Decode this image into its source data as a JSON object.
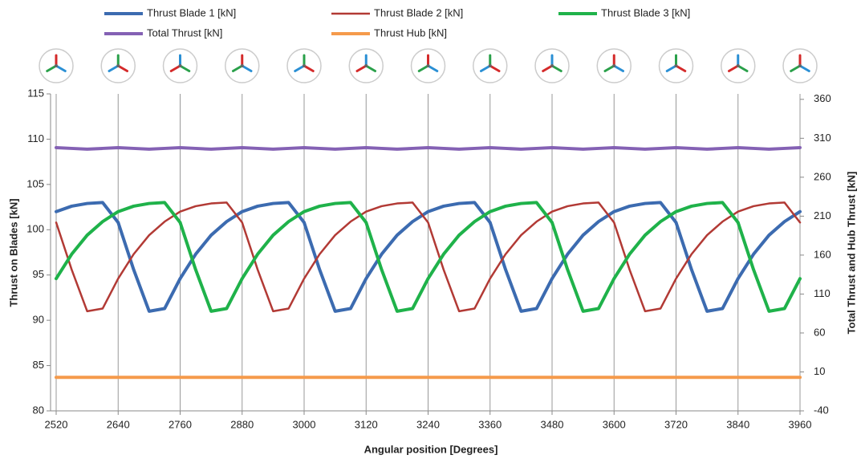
{
  "chart_data": {
    "type": "line",
    "x_label": "Angular position [Degrees]",
    "y_label": "Thrust on Blades [kN]",
    "y2_label": "Total Thrust and Hub Thrust [kN]",
    "x": [
      2520,
      2550,
      2580,
      2610,
      2640,
      2670,
      2700,
      2730,
      2760,
      2790,
      2820,
      2850,
      2880,
      2910,
      2940,
      2970,
      3000,
      3030,
      3060,
      3090,
      3120,
      3150,
      3180,
      3210,
      3240,
      3270,
      3300,
      3330,
      3360,
      3390,
      3420,
      3450,
      3480,
      3510,
      3540,
      3570,
      3600,
      3630,
      3660,
      3690,
      3720,
      3750,
      3780,
      3810,
      3840,
      3870,
      3900,
      3930,
      3960
    ],
    "series": [
      {
        "name": "Thrust Blade 1 [kN]",
        "color": "#3c6bb0",
        "width": 4,
        "values": [
          102.0,
          102.6,
          102.9,
          103.0,
          100.8,
          95.6,
          91.0,
          91.3,
          94.6,
          97.3,
          99.4,
          100.9,
          102.0,
          102.6,
          102.9,
          103.0,
          100.8,
          95.6,
          91.0,
          91.3,
          94.6,
          97.3,
          99.4,
          100.9,
          102.0,
          102.6,
          102.9,
          103.0,
          100.8,
          95.6,
          91.0,
          91.3,
          94.6,
          97.3,
          99.4,
          100.9,
          102.0,
          102.6,
          102.9,
          103.0,
          100.8,
          95.6,
          91.0,
          91.3,
          94.6,
          97.3,
          99.4,
          100.9,
          102.0
        ]
      },
      {
        "name": "Thrust Blade 2 [kN]",
        "color": "#b23a35",
        "width": 2.5,
        "values": [
          100.8,
          95.6,
          91.0,
          91.3,
          94.6,
          97.3,
          99.4,
          100.9,
          102.0,
          102.6,
          102.9,
          103.0,
          100.8,
          95.6,
          91.0,
          91.3,
          94.6,
          97.3,
          99.4,
          100.9,
          102.0,
          102.6,
          102.9,
          103.0,
          100.8,
          95.6,
          91.0,
          91.3,
          94.6,
          97.3,
          99.4,
          100.9,
          102.0,
          102.6,
          102.9,
          103.0,
          100.8,
          95.6,
          91.0,
          91.3,
          94.6,
          97.3,
          99.4,
          100.9,
          102.0,
          102.6,
          102.9,
          103.0,
          100.8
        ]
      },
      {
        "name": "Thrust Blade 3 [kN]",
        "color": "#1fb24a",
        "width": 4,
        "values": [
          94.6,
          97.3,
          99.4,
          100.9,
          102.0,
          102.6,
          102.9,
          103.0,
          100.8,
          95.6,
          91.0,
          91.3,
          94.6,
          97.3,
          99.4,
          100.9,
          102.0,
          102.6,
          102.9,
          103.0,
          100.8,
          95.6,
          91.0,
          91.3,
          94.6,
          97.3,
          99.4,
          100.9,
          102.0,
          102.6,
          102.9,
          103.0,
          100.8,
          95.6,
          91.0,
          91.3,
          94.6,
          97.3,
          99.4,
          100.9,
          102.0,
          102.6,
          102.9,
          103.0,
          100.8,
          95.6,
          91.0,
          91.3,
          94.6
        ]
      },
      {
        "name": "Total Thrust [kN]",
        "color": "#8461b4",
        "width": 4,
        "axis": "y2",
        "values": [
          298,
          297,
          296,
          297,
          298,
          297,
          296,
          297,
          298,
          297,
          296,
          297,
          298,
          297,
          296,
          297,
          298,
          297,
          296,
          297,
          298,
          297,
          296,
          297,
          298,
          297,
          296,
          297,
          298,
          297,
          296,
          297,
          298,
          297,
          296,
          297,
          298,
          297,
          296,
          297,
          298,
          297,
          296,
          297,
          298,
          297,
          296,
          297,
          298
        ]
      },
      {
        "name": "Thrust Hub [kN]",
        "color": "#f59a4b",
        "width": 4,
        "axis": "y2",
        "values": [
          3,
          3,
          3,
          3,
          3,
          3,
          3,
          3,
          3,
          3,
          3,
          3,
          3,
          3,
          3,
          3,
          3,
          3,
          3,
          3,
          3,
          3,
          3,
          3,
          3,
          3,
          3,
          3,
          3,
          3,
          3,
          3,
          3,
          3,
          3,
          3,
          3,
          3,
          3,
          3,
          3,
          3,
          3,
          3,
          3,
          3,
          3,
          3,
          3
        ]
      }
    ],
    "xlim": [
      2520,
      3960
    ],
    "xticks": [
      2520,
      2640,
      2760,
      2880,
      3000,
      3120,
      3240,
      3360,
      3480,
      3600,
      3720,
      3840,
      3960
    ],
    "ylim": [
      80,
      115
    ],
    "yticks": [
      80,
      85,
      90,
      95,
      100,
      105,
      110,
      115
    ],
    "y2lim": [
      -40,
      367
    ],
    "y2ticks": [
      -40,
      10,
      60,
      110,
      160,
      210,
      260,
      310,
      360
    ],
    "grid": "x",
    "legend_position": "top"
  }
}
